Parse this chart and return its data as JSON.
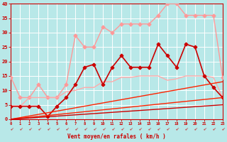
{
  "background_color": "#b8e8e8",
  "grid_color": "#ffffff",
  "xlabel": "Vent moyen/en rafales ( km/h )",
  "xlabel_color": "#cc0000",
  "tick_color": "#cc0000",
  "x_min": 0,
  "x_max": 23,
  "y_min": 0,
  "y_max": 40,
  "series": [
    {
      "color": "#ff9999",
      "lw": 1.0,
      "marker": "D",
      "ms": 2.5,
      "x": [
        0,
        1,
        2,
        3,
        4,
        5,
        6,
        7,
        8,
        9,
        10,
        11,
        12,
        13,
        14,
        15,
        16,
        17,
        18,
        19,
        20,
        21,
        22,
        23
      ],
      "y": [
        14.5,
        7.5,
        7.5,
        12,
        7.5,
        7.5,
        12,
        29,
        25,
        25,
        32,
        30,
        33,
        33,
        33,
        33,
        36,
        40,
        40,
        36,
        36,
        36,
        36,
        14.5
      ]
    },
    {
      "color": "#ffaaaa",
      "lw": 1.0,
      "marker": null,
      "ms": 0,
      "x": [
        0,
        1,
        2,
        3,
        4,
        5,
        6,
        7,
        8,
        9,
        10,
        11,
        12,
        13,
        14,
        15,
        16,
        17,
        18,
        19,
        20,
        21,
        22,
        23
      ],
      "y": [
        4.5,
        4.5,
        7.5,
        7.5,
        7.5,
        7.5,
        9.5,
        10,
        11,
        11,
        13,
        13,
        14.5,
        14.5,
        15,
        15,
        15,
        13.5,
        14,
        15,
        15,
        15,
        14.5,
        7.5
      ]
    },
    {
      "color": "#cc0000",
      "lw": 1.2,
      "marker": "P",
      "ms": 3.0,
      "x": [
        0,
        1,
        2,
        3,
        4,
        5,
        6,
        7,
        8,
        9,
        10,
        11,
        12,
        13,
        14,
        15,
        16,
        17,
        18,
        19,
        20,
        21,
        22,
        23
      ],
      "y": [
        4.5,
        4.5,
        4.5,
        4.5,
        1,
        4.5,
        7.5,
        12,
        18,
        19,
        12,
        18,
        22,
        18,
        18,
        18,
        26,
        22,
        18,
        26,
        25,
        15,
        11,
        7.5
      ]
    },
    {
      "color": "#ff2200",
      "lw": 1.0,
      "marker": null,
      "ms": 0,
      "x": [
        0,
        23
      ],
      "y": [
        0,
        7.5
      ]
    },
    {
      "color": "#ff2200",
      "lw": 1.0,
      "marker": null,
      "ms": 0,
      "x": [
        0,
        23
      ],
      "y": [
        0,
        13
      ]
    },
    {
      "color": "#cc0000",
      "lw": 1.0,
      "marker": null,
      "ms": 0,
      "x": [
        0,
        23
      ],
      "y": [
        0,
        5
      ]
    }
  ],
  "yticks": [
    0,
    5,
    10,
    15,
    20,
    25,
    30,
    35,
    40
  ],
  "xticks": [
    0,
    1,
    2,
    3,
    4,
    5,
    6,
    7,
    8,
    9,
    10,
    11,
    12,
    13,
    14,
    15,
    16,
    17,
    18,
    19,
    20,
    21,
    22,
    23
  ]
}
